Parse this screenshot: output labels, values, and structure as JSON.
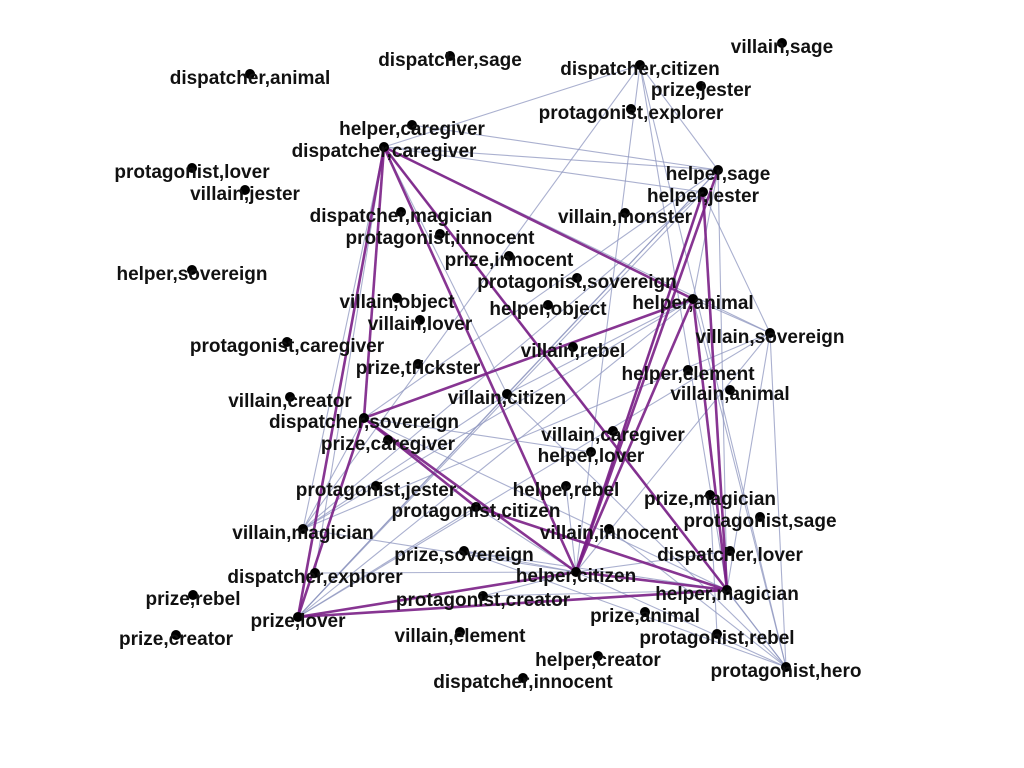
{
  "chart_data": {
    "type": "network",
    "nodes": [
      {
        "id": "dispatcher,sage",
        "label": "dispatcher,sage"
      },
      {
        "id": "villain,sage",
        "label": "villain,sage"
      },
      {
        "id": "dispatcher,animal",
        "label": "dispatcher,animal"
      },
      {
        "id": "dispatcher,citizen",
        "label": "dispatcher,citizen"
      },
      {
        "id": "prize,jester",
        "label": "prize,jester"
      },
      {
        "id": "protagonist,explorer",
        "label": "protagonist,explorer"
      },
      {
        "id": "helper,caregiver",
        "label": "helper,caregiver"
      },
      {
        "id": "dispatcher,caregiver",
        "label": "dispatcher,caregiver"
      },
      {
        "id": "protagonist,lover",
        "label": "protagonist,lover"
      },
      {
        "id": "helper,sage",
        "label": "helper,sage"
      },
      {
        "id": "villain,jester",
        "label": "villain,jester"
      },
      {
        "id": "helper,jester",
        "label": "helper,jester"
      },
      {
        "id": "dispatcher,magician",
        "label": "dispatcher,magician"
      },
      {
        "id": "villain,monster",
        "label": "villain,monster"
      },
      {
        "id": "protagonist,innocent",
        "label": "protagonist,innocent"
      },
      {
        "id": "prize,innocent",
        "label": "prize,innocent"
      },
      {
        "id": "helper,sovereign",
        "label": "helper,sovereign"
      },
      {
        "id": "protagonist,sovereign",
        "label": "protagonist,sovereign"
      },
      {
        "id": "villain,object",
        "label": "villain,object"
      },
      {
        "id": "helper,animal",
        "label": "helper,animal"
      },
      {
        "id": "helper,object",
        "label": "helper,object"
      },
      {
        "id": "villain,lover",
        "label": "villain,lover"
      },
      {
        "id": "villain,sovereign",
        "label": "villain,sovereign"
      },
      {
        "id": "protagonist,caregiver",
        "label": "protagonist,caregiver"
      },
      {
        "id": "villain,rebel",
        "label": "villain,rebel"
      },
      {
        "id": "prize,trickster",
        "label": "prize,trickster"
      },
      {
        "id": "helper,element",
        "label": "helper,element"
      },
      {
        "id": "villain,animal",
        "label": "villain,animal"
      },
      {
        "id": "villain,creator",
        "label": "villain,creator"
      },
      {
        "id": "villain,citizen",
        "label": "villain,citizen"
      },
      {
        "id": "dispatcher,sovereign",
        "label": "dispatcher,sovereign"
      },
      {
        "id": "villain,caregiver",
        "label": "villain,caregiver"
      },
      {
        "id": "prize,caregiver",
        "label": "prize,caregiver"
      },
      {
        "id": "helper,lover",
        "label": "helper,lover"
      },
      {
        "id": "protagonist,jester",
        "label": "protagonist,jester"
      },
      {
        "id": "helper,rebel",
        "label": "helper,rebel"
      },
      {
        "id": "prize,magician",
        "label": "prize,magician"
      },
      {
        "id": "protagonist,citizen",
        "label": "protagonist,citizen"
      },
      {
        "id": "protagonist,sage",
        "label": "protagonist,sage"
      },
      {
        "id": "villain,magician",
        "label": "villain,magician"
      },
      {
        "id": "villain,innocent",
        "label": "villain,innocent"
      },
      {
        "id": "prize,sovereign",
        "label": "prize,sovereign"
      },
      {
        "id": "dispatcher,lover",
        "label": "dispatcher,lover"
      },
      {
        "id": "dispatcher,explorer",
        "label": "dispatcher,explorer"
      },
      {
        "id": "helper,citizen",
        "label": "helper,citizen"
      },
      {
        "id": "prize,rebel",
        "label": "prize,rebel"
      },
      {
        "id": "helper,magician",
        "label": "helper,magician"
      },
      {
        "id": "protagonist,creator",
        "label": "protagonist,creator"
      },
      {
        "id": "prize,lover",
        "label": "prize,lover"
      },
      {
        "id": "prize,animal",
        "label": "prize,animal"
      },
      {
        "id": "prize,creator",
        "label": "prize,creator"
      },
      {
        "id": "villain,element",
        "label": "villain,element"
      },
      {
        "id": "protagonist,rebel",
        "label": "protagonist,rebel"
      },
      {
        "id": "helper,creator",
        "label": "helper,creator"
      },
      {
        "id": "protagonist,hero",
        "label": "protagonist,hero"
      },
      {
        "id": "dispatcher,innocent",
        "label": "dispatcher,innocent"
      }
    ],
    "edges": [
      {
        "source": "dispatcher,caregiver",
        "target": "helper,citizen",
        "weight": "strong"
      },
      {
        "source": "dispatcher,caregiver",
        "target": "prize,lover",
        "weight": "strong"
      },
      {
        "source": "dispatcher,caregiver",
        "target": "dispatcher,sovereign",
        "weight": "strong"
      },
      {
        "source": "dispatcher,caregiver",
        "target": "helper,animal",
        "weight": "strong"
      },
      {
        "source": "dispatcher,caregiver",
        "target": "helper,magician",
        "weight": "strong"
      },
      {
        "source": "dispatcher,caregiver",
        "target": "helper,sage",
        "weight": "light"
      },
      {
        "source": "dispatcher,caregiver",
        "target": "villain,citizen",
        "weight": "light"
      },
      {
        "source": "dispatcher,caregiver",
        "target": "dispatcher,citizen",
        "weight": "light"
      },
      {
        "source": "dispatcher,caregiver",
        "target": "villain,magician",
        "weight": "light"
      },
      {
        "source": "dispatcher,caregiver",
        "target": "protagonist,hero",
        "weight": "light"
      },
      {
        "source": "dispatcher,caregiver",
        "target": "villain,sovereign",
        "weight": "light"
      },
      {
        "source": "dispatcher,caregiver",
        "target": "dispatcher,explorer",
        "weight": "light"
      },
      {
        "source": "dispatcher,caregiver",
        "target": "helper,jester",
        "weight": "light"
      },
      {
        "source": "dispatcher,sovereign",
        "target": "helper,citizen",
        "weight": "strong"
      },
      {
        "source": "dispatcher,sovereign",
        "target": "prize,lover",
        "weight": "strong"
      },
      {
        "source": "dispatcher,sovereign",
        "target": "helper,animal",
        "weight": "strong"
      },
      {
        "source": "dispatcher,sovereign",
        "target": "helper,magician",
        "weight": "light"
      },
      {
        "source": "dispatcher,sovereign",
        "target": "protagonist,citizen",
        "weight": "strong"
      },
      {
        "source": "dispatcher,sovereign",
        "target": "helper,sage",
        "weight": "light"
      },
      {
        "source": "dispatcher,sovereign",
        "target": "villain,magician",
        "weight": "light"
      },
      {
        "source": "dispatcher,sovereign",
        "target": "helper,lover",
        "weight": "light"
      },
      {
        "source": "helper,animal",
        "target": "helper,citizen",
        "weight": "strong"
      },
      {
        "source": "helper,animal",
        "target": "helper,magician",
        "weight": "strong"
      },
      {
        "source": "helper,animal",
        "target": "prize,lover",
        "weight": "light"
      },
      {
        "source": "helper,animal",
        "target": "villain,sovereign",
        "weight": "light"
      },
      {
        "source": "helper,animal",
        "target": "helper,sage",
        "weight": "light"
      },
      {
        "source": "helper,animal",
        "target": "protagonist,hero",
        "weight": "light"
      },
      {
        "source": "helper,animal",
        "target": "villain,magician",
        "weight": "light"
      },
      {
        "source": "helper,sage",
        "target": "helper,citizen",
        "weight": "strong"
      },
      {
        "source": "helper,sage",
        "target": "prize,lover",
        "weight": "light"
      },
      {
        "source": "helper,sage",
        "target": "helper,magician",
        "weight": "light"
      },
      {
        "source": "helper,sage",
        "target": "dispatcher,citizen",
        "weight": "light"
      },
      {
        "source": "helper,sage",
        "target": "villain,citizen",
        "weight": "light"
      },
      {
        "source": "helper,sage",
        "target": "helper,caregiver",
        "weight": "light"
      },
      {
        "source": "helper,citizen",
        "target": "prize,lover",
        "weight": "strong"
      },
      {
        "source": "helper,citizen",
        "target": "helper,magician",
        "weight": "strong"
      },
      {
        "source": "helper,citizen",
        "target": "prize,sovereign",
        "weight": "light"
      },
      {
        "source": "helper,citizen",
        "target": "villain,magician",
        "weight": "light"
      },
      {
        "source": "helper,citizen",
        "target": "protagonist,hero",
        "weight": "light"
      },
      {
        "source": "helper,citizen",
        "target": "villain,sovereign",
        "weight": "light"
      },
      {
        "source": "helper,citizen",
        "target": "dispatcher,citizen",
        "weight": "light"
      },
      {
        "source": "helper,citizen",
        "target": "helper,jester",
        "weight": "light"
      },
      {
        "source": "helper,citizen",
        "target": "protagonist,creator",
        "weight": "light"
      },
      {
        "source": "prize,lover",
        "target": "helper,magician",
        "weight": "strong"
      },
      {
        "source": "prize,lover",
        "target": "villain,citizen",
        "weight": "light"
      },
      {
        "source": "prize,lover",
        "target": "villain,sovereign",
        "weight": "light"
      },
      {
        "source": "helper,magician",
        "target": "protagonist,citizen",
        "weight": "strong"
      },
      {
        "source": "helper,magician",
        "target": "protagonist,hero",
        "weight": "light"
      },
      {
        "source": "helper,magician",
        "target": "villain,sovereign",
        "weight": "light"
      },
      {
        "source": "helper,magician",
        "target": "helper,jester",
        "weight": "strong"
      },
      {
        "source": "helper,magician",
        "target": "prize,sovereign",
        "weight": "light"
      },
      {
        "source": "villain,citizen",
        "target": "helper,animal",
        "weight": "light"
      },
      {
        "source": "villain,citizen",
        "target": "villain,magician",
        "weight": "light"
      },
      {
        "source": "villain,citizen",
        "target": "protagonist,hero",
        "weight": "light"
      },
      {
        "source": "dispatcher,citizen",
        "target": "villain,magician",
        "weight": "light"
      },
      {
        "source": "dispatcher,citizen",
        "target": "protagonist,hero",
        "weight": "light"
      },
      {
        "source": "dispatcher,citizen",
        "target": "helper,magician",
        "weight": "light"
      },
      {
        "source": "villain,magician",
        "target": "villain,sovereign",
        "weight": "light"
      },
      {
        "source": "villain,magician",
        "target": "helper,jester",
        "weight": "light"
      },
      {
        "source": "villain,sovereign",
        "target": "protagonist,hero",
        "weight": "light"
      },
      {
        "source": "villain,sovereign",
        "target": "helper,jester",
        "weight": "light"
      },
      {
        "source": "helper,jester",
        "target": "helper,citizen",
        "weight": "strong"
      },
      {
        "source": "helper,jester",
        "target": "prize,lover",
        "weight": "light"
      },
      {
        "source": "dispatcher,explorer",
        "target": "helper,citizen",
        "weight": "light"
      },
      {
        "source": "prize,sovereign",
        "target": "protagonist,hero",
        "weight": "light"
      },
      {
        "source": "protagonist,citizen",
        "target": "helper,citizen",
        "weight": "light"
      },
      {
        "source": "protagonist,citizen",
        "target": "prize,lover",
        "weight": "light"
      },
      {
        "source": "protagonist,creator",
        "target": "helper,magician",
        "weight": "light"
      },
      {
        "source": "dispatcher,lover",
        "target": "helper,citizen",
        "weight": "light"
      },
      {
        "source": "helper,rebel",
        "target": "helper,citizen",
        "weight": "light"
      },
      {
        "source": "villain,innocent",
        "target": "protagonist,hero",
        "weight": "light"
      },
      {
        "source": "prize,magician",
        "target": "protagonist,rebel",
        "weight": "light"
      }
    ]
  }
}
